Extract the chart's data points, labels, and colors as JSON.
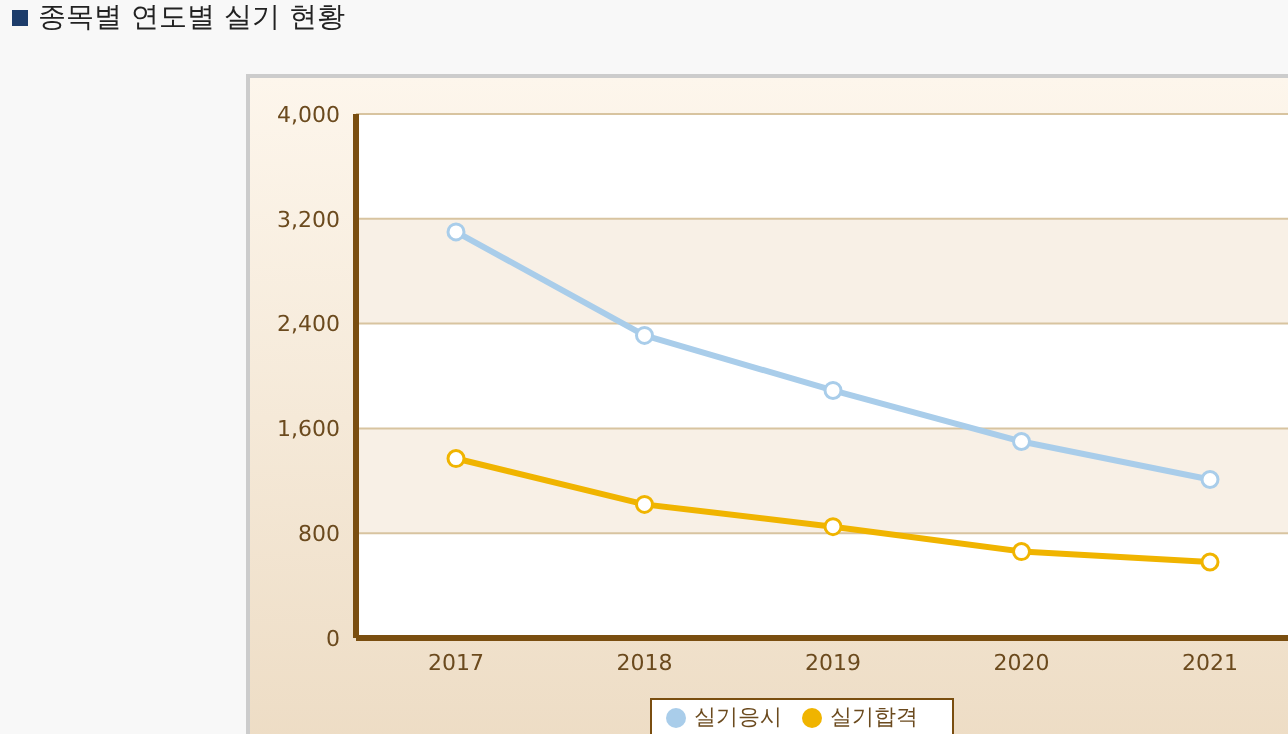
{
  "chart_data": {
    "type": "line",
    "title": "종목별 연도별 실기 현황",
    "categories": [
      "2017",
      "2018",
      "2019",
      "2020",
      "2021"
    ],
    "series": [
      {
        "name": "실기응시",
        "color": "#a9cdea",
        "values": [
          3100,
          2310,
          1890,
          1500,
          1210
        ]
      },
      {
        "name": "실기합격",
        "color": "#f0b400",
        "values": [
          1370,
          1020,
          850,
          660,
          580
        ]
      }
    ],
    "ylim": [
      0,
      4000
    ],
    "yticks": [
      0,
      800,
      {
        "value": 1600,
        "label": "1,600"
      },
      {
        "value": 2400,
        "label": "2,400"
      },
      {
        "value": 3200,
        "label": "3,200"
      },
      {
        "value": 4000,
        "label": "4,000"
      }
    ],
    "grid": "y",
    "legend": "bottom",
    "marker": "circle"
  }
}
